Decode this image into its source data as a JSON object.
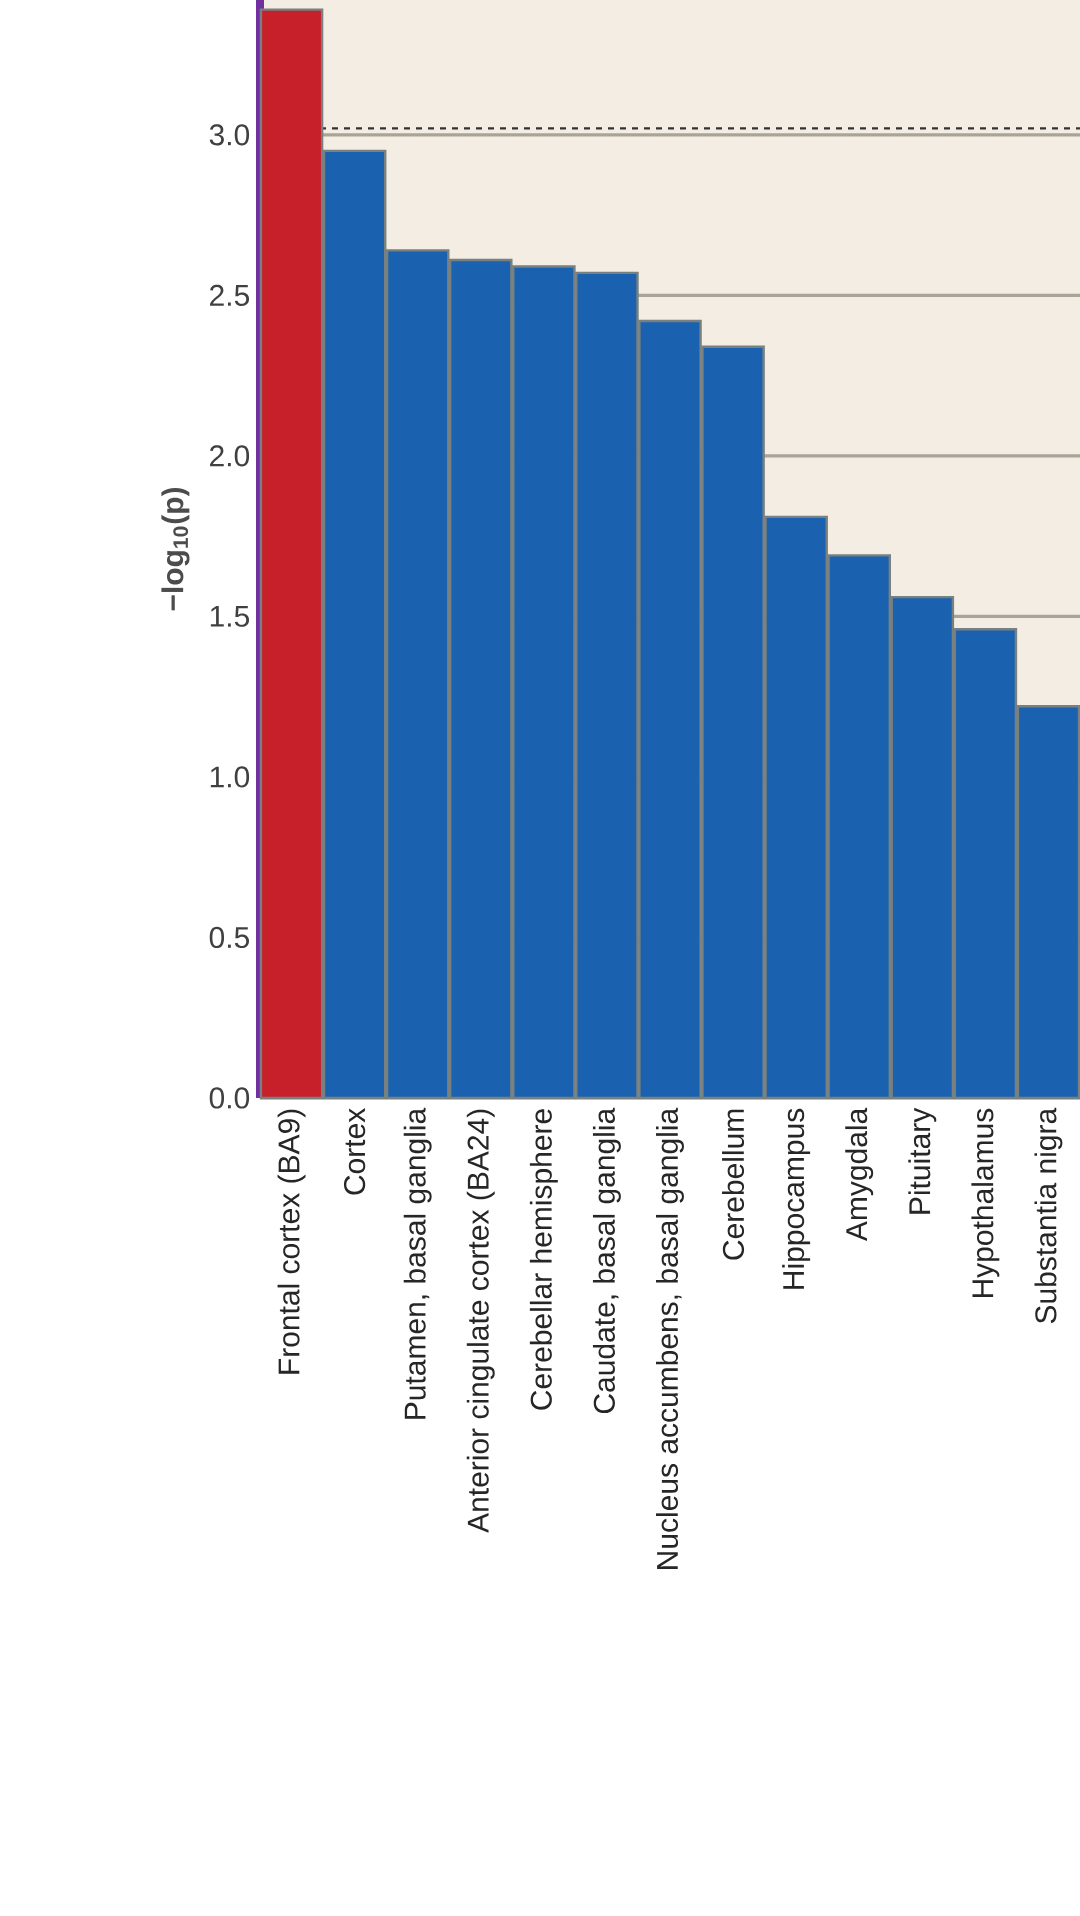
{
  "chart_data": {
    "type": "bar",
    "ylabel": "−log$_{10}$(p)",
    "categories": [
      "Frontal cortex (BA9)",
      "Cortex",
      "Putamen, basal ganglia",
      "Anterior cingulate cortex (BA24)",
      "Cerebellar hemisphere",
      "Caudate, basal ganglia",
      "Nucleus accumbens, basal ganglia",
      "Cerebellum",
      "Hippocampus",
      "Amygdala",
      "Pituitary",
      "Hypothalamus",
      "Substantia nigra"
    ],
    "values": [
      3.39,
      2.95,
      2.64,
      2.61,
      2.59,
      2.57,
      2.42,
      2.34,
      1.81,
      1.69,
      1.56,
      1.46,
      1.22
    ],
    "colors": [
      "#c8202a",
      "#1a62b0",
      "#1a62b0",
      "#1a62b0",
      "#1a62b0",
      "#1a62b0",
      "#1a62b0",
      "#1a62b0",
      "#1a62b0",
      "#1a62b0",
      "#1a62b0",
      "#1a62b0",
      "#1a62b0"
    ],
    "ylim": [
      0,
      3.42
    ],
    "yticks": [
      {
        "value": 0,
        "label": "0.0"
      },
      {
        "value": 0.5,
        "label": "0.5"
      },
      {
        "value": 1,
        "label": "1.0"
      },
      {
        "value": 1.5,
        "label": "1.5"
      },
      {
        "value": 2,
        "label": "2.0"
      },
      {
        "value": 2.5,
        "label": "2.5"
      },
      {
        "value": 3,
        "label": "3.0"
      }
    ],
    "grid": "y",
    "ref_lines": [
      {
        "axis": "y",
        "value": 3.02,
        "line_style": "dashed",
        "color": "#333333"
      }
    ]
  }
}
